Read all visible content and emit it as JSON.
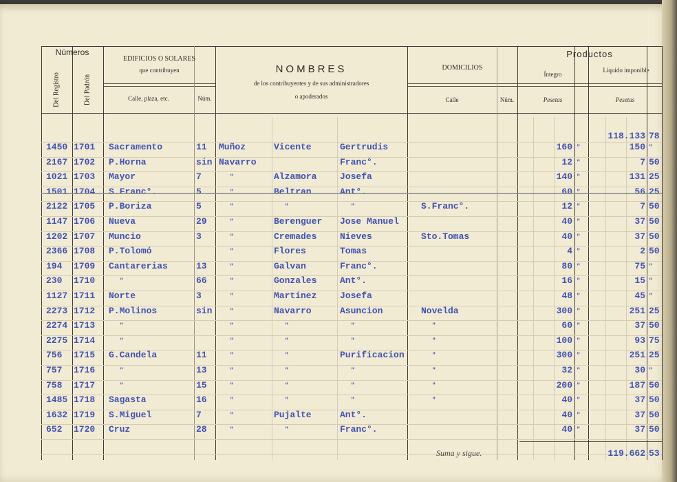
{
  "header": {
    "numeros": "Números",
    "del_registro": "Del Registro",
    "del_padron": "Del Padrón",
    "edificios": "EDIFICIOS O SOLARES",
    "que_contribuyen": "que contribuyen",
    "calle_plaza": "Calle, plaza, etc.",
    "num": "Núm.",
    "nombres": "NOMBRES",
    "nombres_sub1": "de los contribuyentes y de sus administradores",
    "nombres_sub2": "o apoderados",
    "domicilios": "DOMICILIOS",
    "dom_calle": "Calle",
    "dom_num": "Núm.",
    "productos": "Productos",
    "integro": "Íntegro",
    "liquido": "Líquido imponible",
    "pesetas_integro": "Pesetas",
    "pesetas_liquido": "Pesetas"
  },
  "carry_forward": {
    "liquido_pts": "118.133",
    "liquido_cts": "78"
  },
  "rows": [
    {
      "reg": "1450",
      "pad": "1701",
      "calle": "Sacramento",
      "num": "11",
      "ap1": "Muñoz",
      "ap2": "Vicente",
      "nombre": "Gertrudis",
      "dom": "",
      "int": "160",
      "int_c": "\"",
      "liq": "150",
      "liq_c": "\""
    },
    {
      "reg": "2167",
      "pad": "1702",
      "calle": "P.Horna",
      "num": "sin",
      "ap1": "Navarro",
      "ap2": "",
      "nombre": "Franc°.",
      "dom": "",
      "int": "12",
      "int_c": "\"",
      "liq": "7",
      "liq_c": "50"
    },
    {
      "reg": "1021",
      "pad": "1703",
      "calle": "Mayor",
      "num": "7",
      "ap1": "\"",
      "ap2": "Alzamora",
      "nombre": "Josefa",
      "dom": "",
      "int": "140",
      "int_c": "\"",
      "liq": "131",
      "liq_c": "25"
    },
    {
      "reg": "1501",
      "pad": "1704",
      "calle": "S.Franc°.",
      "num": "5",
      "ap1": "\"",
      "ap2": "Beltran",
      "nombre": "Ant°.",
      "dom": "",
      "int": "60",
      "int_c": "\"",
      "liq": "56",
      "liq_c": "25",
      "struck": true
    },
    {
      "reg": "2122",
      "pad": "1705",
      "calle": "P.Boriza",
      "num": "5",
      "ap1": "\"",
      "ap2": "\"",
      "nombre": "\"",
      "dom": "S.Franc°.",
      "int": "12",
      "int_c": "\"",
      "liq": "7",
      "liq_c": "50"
    },
    {
      "reg": "1147",
      "pad": "1706",
      "calle": "Nueva",
      "num": "29",
      "ap1": "\"",
      "ap2": "Berenguer",
      "nombre": "Jose Manuel",
      "dom": "",
      "int": "40",
      "int_c": "\"",
      "liq": "37",
      "liq_c": "50"
    },
    {
      "reg": "1202",
      "pad": "1707",
      "calle": "Muncio",
      "num": "3",
      "ap1": "\"",
      "ap2": "Cremades",
      "nombre": "Nieves",
      "dom": "Sto.Tomas",
      "int": "40",
      "int_c": "\"",
      "liq": "37",
      "liq_c": "50"
    },
    {
      "reg": "2366",
      "pad": "1708",
      "calle": "P.Tolomó",
      "num": "",
      "ap1": "\"",
      "ap2": "Flores",
      "nombre": "Tomas",
      "dom": "",
      "int": "4",
      "int_c": "\"",
      "liq": "2",
      "liq_c": "50"
    },
    {
      "reg": "194",
      "pad": "1709",
      "calle": "Cantarerias",
      "num": "13",
      "ap1": "\"",
      "ap2": "Galvan",
      "nombre": "Franc°.",
      "dom": "",
      "int": "80",
      "int_c": "\"",
      "liq": "75",
      "liq_c": "\""
    },
    {
      "reg": "230",
      "pad": "1710",
      "calle": "\"",
      "num": "66",
      "ap1": "\"",
      "ap2": "Gonzales",
      "nombre": "Ant°.",
      "dom": "",
      "int": "16",
      "int_c": "\"",
      "liq": "15",
      "liq_c": "\""
    },
    {
      "reg": "1127",
      "pad": "1711",
      "calle": "Norte",
      "num": "3",
      "ap1": "\"",
      "ap2": "Martinez",
      "nombre": "Josefa",
      "dom": "",
      "int": "48",
      "int_c": "\"",
      "liq": "45",
      "liq_c": "\""
    },
    {
      "reg": "2273",
      "pad": "1712",
      "calle": "P.Molinos",
      "num": "sin",
      "ap1": "\"",
      "ap2": "Navarro",
      "nombre": "Asuncion",
      "dom": "Novelda",
      "int": "300",
      "int_c": "\"",
      "liq": "251",
      "liq_c": "25"
    },
    {
      "reg": "2274",
      "pad": "1713",
      "calle": "\"",
      "num": "",
      "ap1": "\"",
      "ap2": "\"",
      "nombre": "\"",
      "dom": "\"",
      "int": "60",
      "int_c": "\"",
      "liq": "37",
      "liq_c": "50"
    },
    {
      "reg": "2275",
      "pad": "1714",
      "calle": "\"",
      "num": "",
      "ap1": "\"",
      "ap2": "\"",
      "nombre": "\"",
      "dom": "\"",
      "int": "100",
      "int_c": "\"",
      "liq": "93",
      "liq_c": "75"
    },
    {
      "reg": "756",
      "pad": "1715",
      "calle": "G.Candela",
      "num": "11",
      "ap1": "\"",
      "ap2": "\"",
      "nombre": "Purificacion",
      "dom": "\"",
      "int": "300",
      "int_c": "\"",
      "liq": "251",
      "liq_c": "25"
    },
    {
      "reg": "757",
      "pad": "1716",
      "calle": "\"",
      "num": "13",
      "ap1": "\"",
      "ap2": "\"",
      "nombre": "\"",
      "dom": "\"",
      "int": "32",
      "int_c": "\"",
      "liq": "30",
      "liq_c": "\""
    },
    {
      "reg": "758",
      "pad": "1717",
      "calle": "\"",
      "num": "15",
      "ap1": "\"",
      "ap2": "\"",
      "nombre": "\"",
      "dom": "\"",
      "int": "200",
      "int_c": "\"",
      "liq": "187",
      "liq_c": "50"
    },
    {
      "reg": "1485",
      "pad": "1718",
      "calle": "Sagasta",
      "num": "16",
      "ap1": "\"",
      "ap2": "\"",
      "nombre": "\"",
      "dom": "\"",
      "int": "40",
      "int_c": "\"",
      "liq": "37",
      "liq_c": "50"
    },
    {
      "reg": "1632",
      "pad": "1719",
      "calle": "S.Miguel",
      "num": "7",
      "ap1": "\"",
      "ap2": "Pujalte",
      "nombre": "Ant°.",
      "dom": "",
      "int": "40",
      "int_c": "\"",
      "liq": "37",
      "liq_c": "50"
    },
    {
      "reg": "652",
      "pad": "1720",
      "calle": "Cruz",
      "num": "28",
      "ap1": "\"",
      "ap2": "\"",
      "nombre": "Franc°.",
      "dom": "",
      "int": "40",
      "int_c": "\"",
      "liq": "37",
      "liq_c": "50"
    }
  ],
  "footer": {
    "suma_label": "Suma y sigue.",
    "total_pts": "119.662",
    "total_cts": "53"
  }
}
